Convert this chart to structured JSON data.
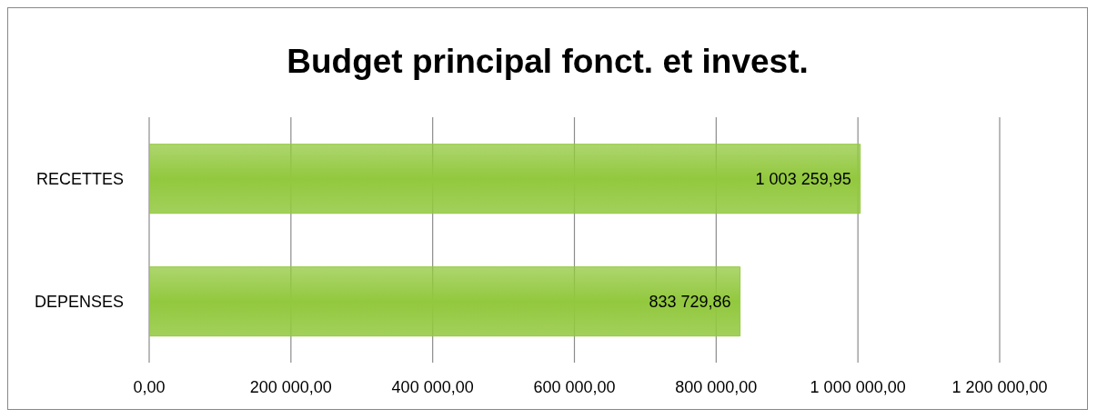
{
  "chart_data": {
    "type": "bar",
    "orientation": "horizontal",
    "title": "Budget principal fonct. et invest.",
    "categories": [
      "RECETTES",
      "DEPENSES"
    ],
    "values": [
      1003259.95,
      833729.86
    ],
    "value_labels": [
      "1 003 259,95",
      "833 729,86"
    ],
    "color": "#92c83e",
    "xlim": [
      0,
      1200000
    ],
    "xticks": [
      {
        "value": 0,
        "label": "0,00"
      },
      {
        "value": 200000,
        "label": "200 000,00"
      },
      {
        "value": 400000,
        "label": "400 000,00"
      },
      {
        "value": 600000,
        "label": "600 000,00"
      },
      {
        "value": 800000,
        "label": "800 000,00"
      },
      {
        "value": 1000000,
        "label": "1 000 000,00"
      },
      {
        "value": 1200000,
        "label": "1 200 000,00"
      }
    ],
    "grid": "x"
  }
}
